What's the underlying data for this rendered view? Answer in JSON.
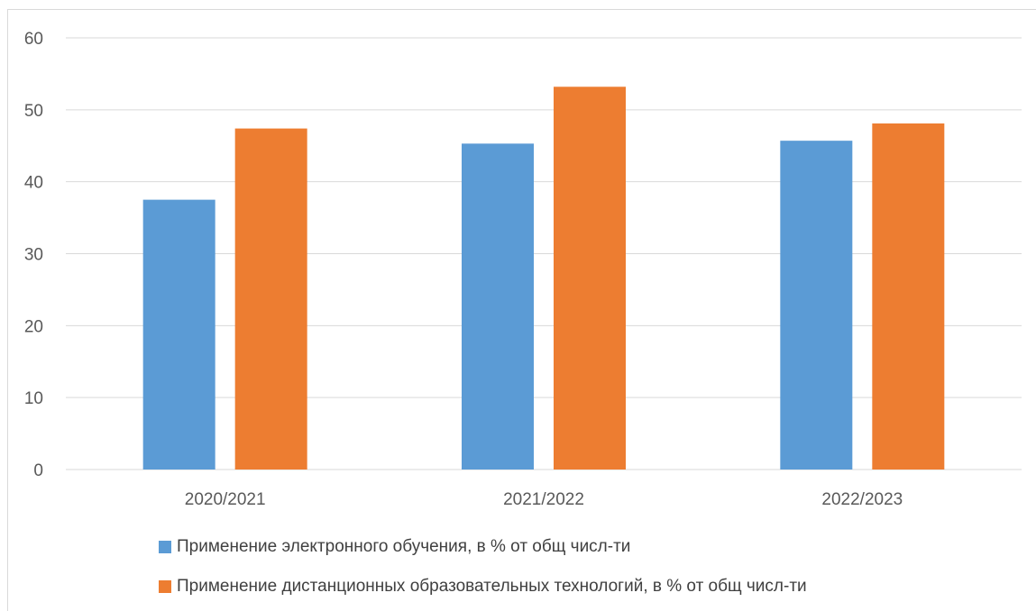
{
  "chart_data": {
    "type": "bar",
    "title": "",
    "xlabel": "",
    "ylabel": "",
    "ylim": [
      0,
      60
    ],
    "yticks": [
      "0",
      "10",
      "20",
      "30",
      "40",
      "50",
      "60"
    ],
    "categories": [
      "2020/2021",
      "2021/2022",
      "2022/2023"
    ],
    "series": [
      {
        "name": "Применение электронного обучения, в % от общ числ-ти",
        "values": [
          37.5,
          45.3,
          45.7
        ],
        "color": "#5b9bd5"
      },
      {
        "name": "Применение дистанционных образовательных технологий, в % от общ числ-ти",
        "values": [
          47.4,
          53.2,
          48.1
        ],
        "color": "#ed7d31"
      }
    ],
    "grid": true,
    "legend_position": "bottom"
  }
}
